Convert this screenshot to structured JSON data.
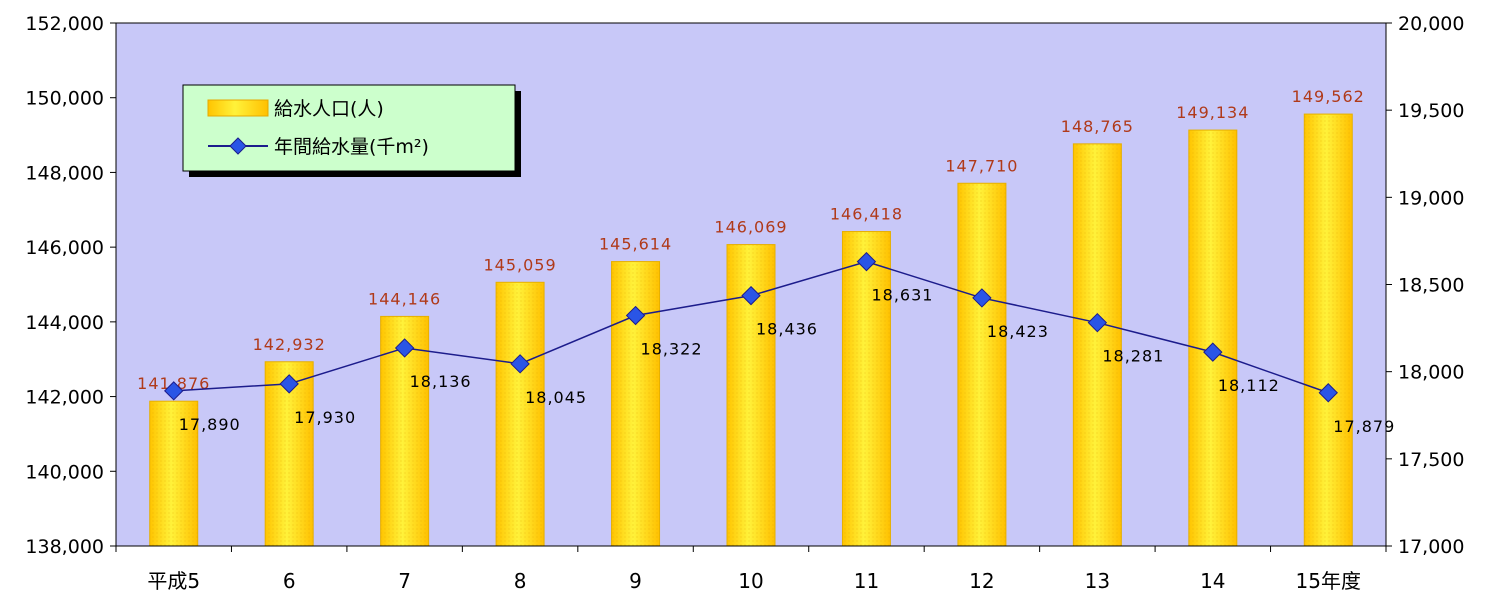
{
  "chart_data": {
    "type": "bar",
    "categories": [
      "平成5",
      "6",
      "7",
      "8",
      "9",
      "10",
      "11",
      "12",
      "13",
      "14",
      "15年度"
    ],
    "series": [
      {
        "name": "給水人口(人)",
        "type": "bar",
        "axis": "left",
        "values": [
          141876,
          142932,
          144146,
          145059,
          145614,
          146069,
          146418,
          147710,
          148765,
          149134,
          149562
        ],
        "labels": [
          "141,876",
          "142,932",
          "144,146",
          "145,059",
          "145,614",
          "146,069",
          "146,418",
          "147,710",
          "148,765",
          "149,134",
          "149,562"
        ]
      },
      {
        "name": "年間給水量(千m²)",
        "type": "line",
        "axis": "right",
        "values": [
          17890,
          17930,
          18136,
          18045,
          18322,
          18436,
          18631,
          18423,
          18281,
          18112,
          17879
        ],
        "labels": [
          "17,890",
          "17,930",
          "18,136",
          "18,045",
          "18,322",
          "18,436",
          "18,631",
          "18,423",
          "18,281",
          "18,112",
          "17,879"
        ]
      }
    ],
    "y_left": {
      "ylim": [
        138000,
        152000
      ],
      "ticks": [
        "138,000",
        "140,000",
        "142,000",
        "144,000",
        "146,000",
        "148,000",
        "150,000",
        "152,000"
      ],
      "tick_values": [
        138000,
        140000,
        142000,
        144000,
        146000,
        148000,
        150000,
        152000
      ]
    },
    "y_right": {
      "ylim": [
        17000,
        20000
      ],
      "ticks": [
        "17,000",
        "17,500",
        "18,000",
        "18,500",
        "19,000",
        "19,500",
        "20,000"
      ],
      "tick_values": [
        17000,
        17500,
        18000,
        18500,
        19000,
        19500,
        20000
      ]
    },
    "legend_placement": "top-left",
    "grid": false,
    "colors": {
      "plot_background": "#c8c8f8",
      "bar_fill": "#ffd400",
      "bar_highlight": "#fff23a",
      "line": "#1c1c8c",
      "marker": "#2a55e6",
      "bar_label": "#b03a1a"
    }
  }
}
